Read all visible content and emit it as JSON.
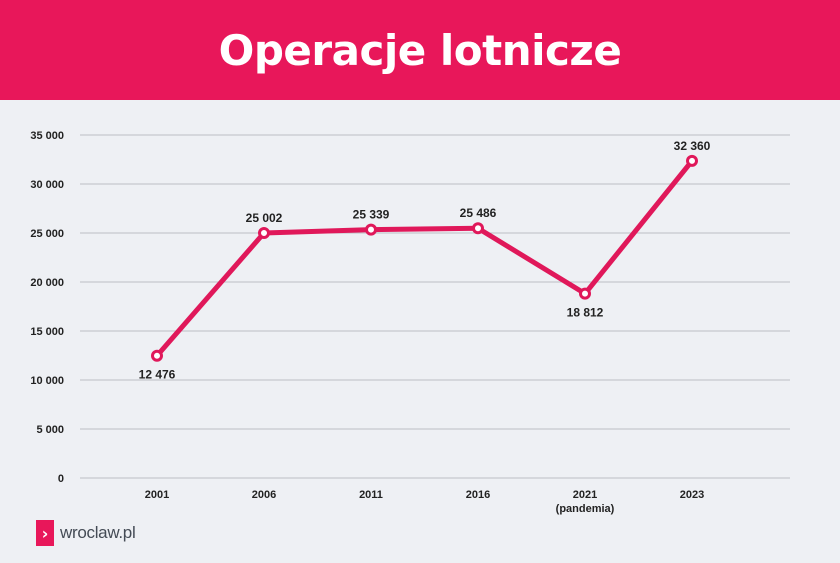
{
  "header": {
    "title": "Operacje lotnicze"
  },
  "chart_data": {
    "type": "line",
    "title": "Operacje lotnicze",
    "xlabel": "",
    "ylabel": "",
    "categories": [
      "2001",
      "2006",
      "2011",
      "2016",
      "2021",
      "2023"
    ],
    "category_sublabels": [
      "",
      "",
      "",
      "",
      "(pandemia)",
      ""
    ],
    "values": [
      12476,
      25002,
      25339,
      25486,
      18812,
      32360
    ],
    "data_labels": [
      "12 476",
      "25 002",
      "25 339",
      "25 486",
      "18 812",
      "32 360"
    ],
    "label_positions": [
      "below",
      "above",
      "above",
      "above",
      "below",
      "above"
    ],
    "y_ticks": [
      0,
      5000,
      10000,
      15000,
      20000,
      25000,
      30000,
      35000
    ],
    "y_tick_labels": [
      "0",
      "5 000",
      "10 000",
      "15 000",
      "20 000",
      "25 000",
      "30 000",
      "35 000"
    ],
    "ylim": [
      0,
      35000
    ],
    "grid": true,
    "legend": "none",
    "line_color": "#e0185a",
    "grid_color": "#bcbec4"
  },
  "footer": {
    "logo_glyph": "›",
    "logo_text": "wroclaw.pl"
  },
  "colors": {
    "brand": "#e8175a",
    "background": "#eef0f4"
  }
}
